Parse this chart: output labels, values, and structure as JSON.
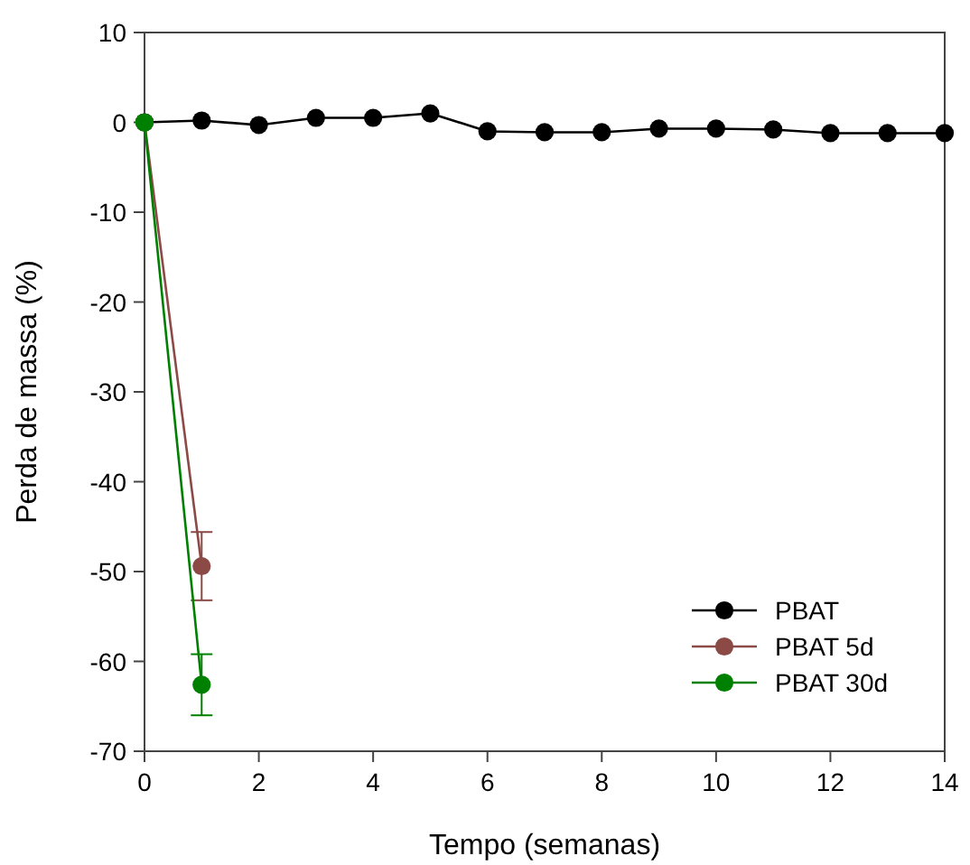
{
  "chart_data": {
    "type": "line",
    "xlabel": "Tempo (semanas)",
    "ylabel": "Perda de massa (%)",
    "xlim": [
      0,
      14
    ],
    "xticks": [
      0,
      2,
      4,
      6,
      8,
      10,
      12,
      14
    ],
    "ylim": [
      -70,
      10
    ],
    "yticks": [
      -70,
      -60,
      -50,
      -40,
      -30,
      -20,
      -10,
      0,
      10
    ],
    "marker": "circle",
    "legend": "bottom right",
    "grid": false,
    "series": [
      {
        "name": "PBAT",
        "color": "#000000",
        "x": [
          0,
          1,
          2,
          3,
          4,
          5,
          6,
          7,
          8,
          9,
          10,
          11,
          12,
          13,
          14
        ],
        "values": [
          0,
          0.2,
          -0.3,
          0.5,
          0.5,
          1.0,
          -1.0,
          -1.1,
          -1.1,
          -0.7,
          -0.7,
          -0.8,
          -1.2,
          -1.2,
          -1.2
        ]
      },
      {
        "name": "PBAT 5d",
        "color": "#8b4a45",
        "x": [
          0,
          1
        ],
        "values": [
          0,
          -49.4
        ],
        "errors": [
          null,
          3.8
        ]
      },
      {
        "name": "PBAT 30d",
        "color": "#008000",
        "x": [
          0,
          1
        ],
        "values": [
          0,
          -62.6
        ],
        "errors": [
          null,
          3.4
        ]
      }
    ]
  }
}
